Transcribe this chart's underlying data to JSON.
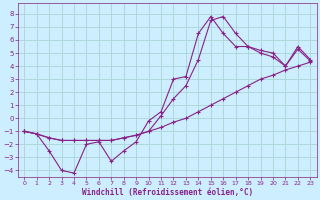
{
  "xlabel": "Windchill (Refroidissement éolien,°C)",
  "bg_color": "#cceeff",
  "grid_color": "#aad4d4",
  "line_color": "#882288",
  "axis_color": "#882288",
  "xlim": [
    -0.5,
    23.5
  ],
  "ylim": [
    -4.5,
    8.8
  ],
  "xticks": [
    0,
    1,
    2,
    3,
    4,
    5,
    6,
    7,
    8,
    9,
    10,
    11,
    12,
    13,
    14,
    15,
    16,
    17,
    18,
    19,
    20,
    21,
    22,
    23
  ],
  "yticks": [
    -4,
    -3,
    -2,
    -1,
    0,
    1,
    2,
    3,
    4,
    5,
    6,
    7,
    8
  ],
  "tick_fontsize": 5.0,
  "xlabel_fontsize": 5.5,
  "line1_x": [
    0,
    1,
    2,
    3,
    4,
    5,
    6,
    7,
    8,
    9,
    10,
    11,
    12,
    13,
    14,
    15,
    16,
    17,
    18,
    19,
    20,
    21,
    22,
    23
  ],
  "line1_y": [
    -1,
    -1.2,
    -1.5,
    -1.7,
    -1.7,
    -1.7,
    -1.7,
    -1.7,
    -1.5,
    -1.3,
    -1.0,
    -0.7,
    -0.3,
    0.0,
    0.5,
    1.0,
    1.5,
    2.0,
    2.5,
    3.0,
    3.3,
    3.7,
    4.0,
    4.3
  ],
  "line2_x": [
    0,
    1,
    2,
    3,
    4,
    5,
    6,
    7,
    8,
    9,
    10,
    11,
    12,
    13,
    14,
    15,
    16,
    17,
    18,
    19,
    20,
    21,
    22,
    23
  ],
  "line2_y": [
    -1,
    -1.2,
    -2.5,
    -4.0,
    -4.2,
    -2.0,
    -1.8,
    -3.3,
    -2.5,
    -1.8,
    -0.2,
    0.5,
    3.0,
    3.2,
    6.5,
    7.8,
    6.5,
    5.5,
    5.5,
    5.2,
    5.0,
    4.0,
    5.5,
    4.5
  ],
  "line3_x": [
    0,
    1,
    2,
    3,
    4,
    5,
    6,
    7,
    8,
    9,
    10,
    11,
    12,
    13,
    14,
    15,
    16,
    17,
    18,
    19,
    20,
    21,
    22,
    23
  ],
  "line3_y": [
    -1,
    -1.2,
    -1.5,
    -1.7,
    -1.7,
    -1.7,
    -1.7,
    -1.7,
    -1.5,
    -1.3,
    -1.0,
    0.2,
    1.5,
    2.5,
    4.5,
    7.5,
    7.8,
    6.5,
    5.5,
    5.0,
    4.7,
    4.0,
    5.3,
    4.4
  ]
}
